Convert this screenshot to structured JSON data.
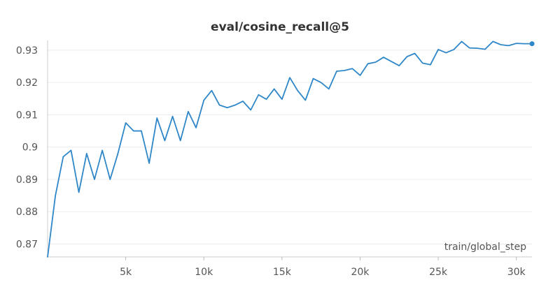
{
  "chart_data": {
    "type": "line",
    "title": "eval/cosine_recall@5",
    "xlabel": "train/global_step",
    "ylabel": "",
    "xlim": [
      0,
      31000
    ],
    "ylim": [
      0.866,
      0.933
    ],
    "xticks": [
      5000,
      10000,
      15000,
      20000,
      25000,
      30000
    ],
    "xtick_labels": [
      "5k",
      "10k",
      "15k",
      "20k",
      "25k",
      "30k"
    ],
    "yticks": [
      0.87,
      0.88,
      0.89,
      0.9,
      0.91,
      0.92,
      0.93
    ],
    "ytick_labels": [
      "0.87",
      "0.88",
      "0.89",
      "0.9",
      "0.91",
      "0.92",
      "0.93"
    ],
    "grid": true,
    "color": "#2f87c8",
    "series": [
      {
        "x": [
          0,
          500,
          1000,
          1500,
          2000,
          2500,
          3000,
          3500,
          4000,
          4500,
          5000,
          5500,
          6000,
          6500,
          7000,
          7500,
          8000,
          8500,
          9000,
          9500,
          10000,
          10500,
          11000,
          11500,
          12000,
          12500,
          13000,
          13500,
          14000,
          14500,
          15000,
          15500,
          16000,
          16500,
          17000,
          17500,
          18000,
          18500,
          19000,
          19500,
          20000,
          20500,
          21000,
          21500,
          22000,
          22500,
          23000,
          23500,
          24000,
          24500,
          25000,
          25500,
          26000,
          26500,
          27000,
          27500,
          28000,
          28500,
          29000,
          29500,
          30000,
          30500,
          31000
        ],
        "y": [
          0.866,
          0.885,
          0.897,
          0.899,
          0.886,
          0.898,
          0.89,
          0.899,
          0.89,
          0.898,
          0.9075,
          0.905,
          0.905,
          0.895,
          0.909,
          0.902,
          0.9095,
          0.902,
          0.911,
          0.906,
          0.9145,
          0.9175,
          0.913,
          0.9122,
          0.913,
          0.9142,
          0.9115,
          0.9162,
          0.9148,
          0.918,
          0.9148,
          0.9215,
          0.9175,
          0.9145,
          0.9212,
          0.92,
          0.918,
          0.9235,
          0.9237,
          0.9243,
          0.9222,
          0.9258,
          0.9263,
          0.9278,
          0.9265,
          0.9252,
          0.928,
          0.929,
          0.926,
          0.9255,
          0.9302,
          0.9292,
          0.9302,
          0.9327,
          0.9307,
          0.9306,
          0.9303,
          0.9327,
          0.9317,
          0.9314,
          0.9321,
          0.932,
          0.932
        ]
      }
    ]
  }
}
